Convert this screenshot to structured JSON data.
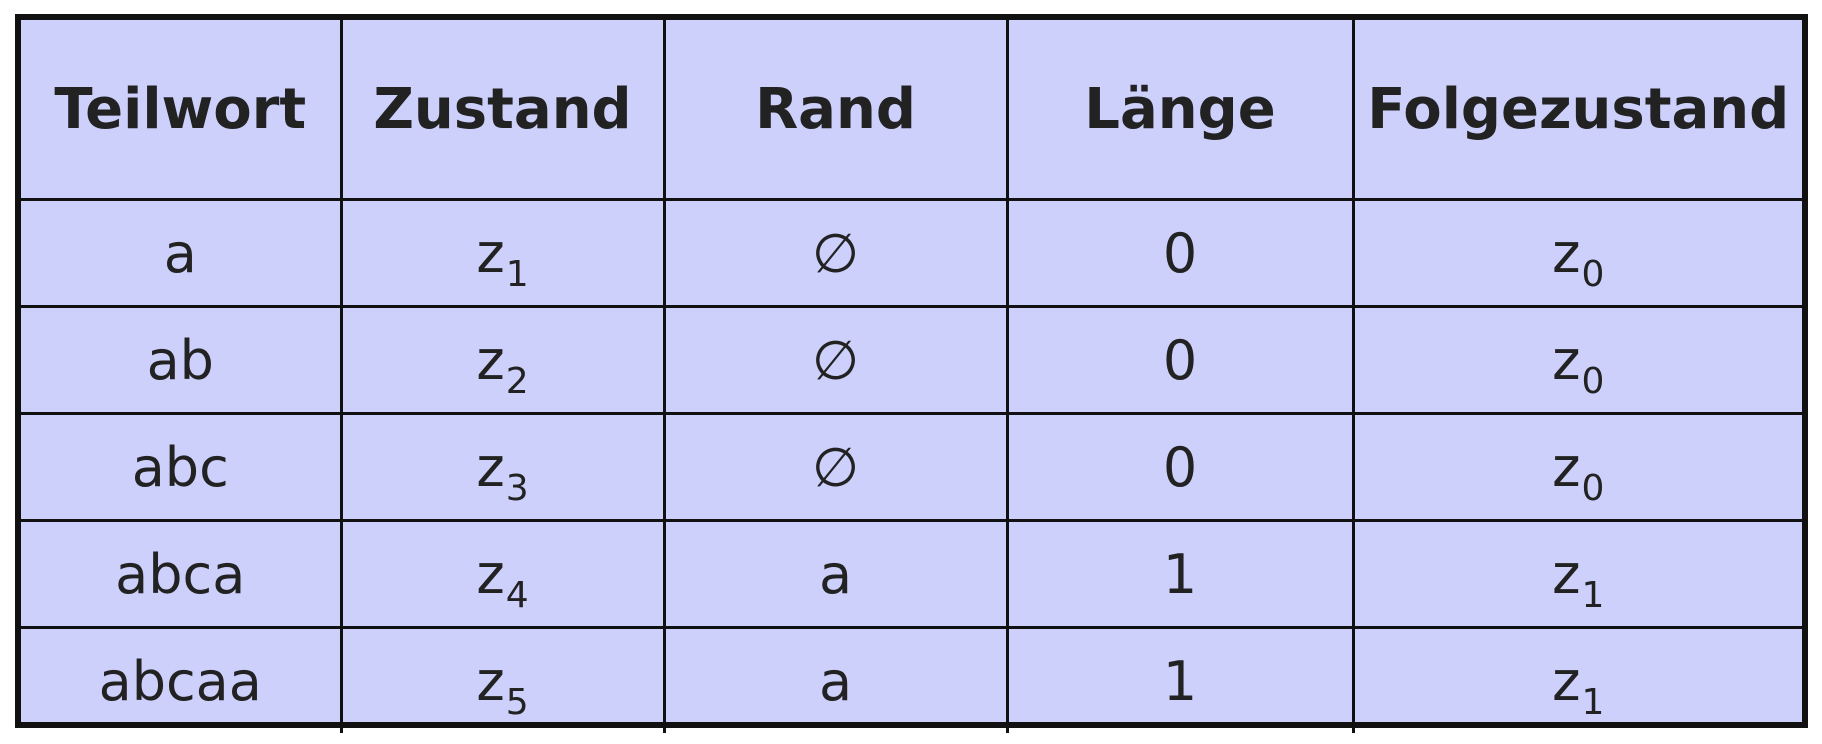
{
  "table": {
    "headers": [
      "Teilwort",
      "Zustand",
      "Rand",
      "Länge",
      "Folgezustand"
    ],
    "rows": [
      {
        "teilwort": "a",
        "zustand": "z",
        "zustand_sub": "1",
        "rand": "∅",
        "laenge": "0",
        "folgezustand": "z",
        "folgezustand_sub": "0"
      },
      {
        "teilwort": "ab",
        "zustand": "z",
        "zustand_sub": "2",
        "rand": "∅",
        "laenge": "0",
        "folgezustand": "z",
        "folgezustand_sub": "0"
      },
      {
        "teilwort": "abc",
        "zustand": "z",
        "zustand_sub": "3",
        "rand": "∅",
        "laenge": "0",
        "folgezustand": "z",
        "folgezustand_sub": "0"
      },
      {
        "teilwort": "abca",
        "zustand": "z",
        "zustand_sub": "4",
        "rand": "a",
        "laenge": "1",
        "folgezustand": "z",
        "folgezustand_sub": "1"
      },
      {
        "teilwort": "abcaa",
        "zustand": "z",
        "zustand_sub": "5",
        "rand": "a",
        "laenge": "1",
        "folgezustand": "z",
        "folgezustand_sub": "1"
      }
    ]
  },
  "colors": {
    "cell_background": "#ccd0fb",
    "border": "#111111",
    "text": "#222222"
  }
}
